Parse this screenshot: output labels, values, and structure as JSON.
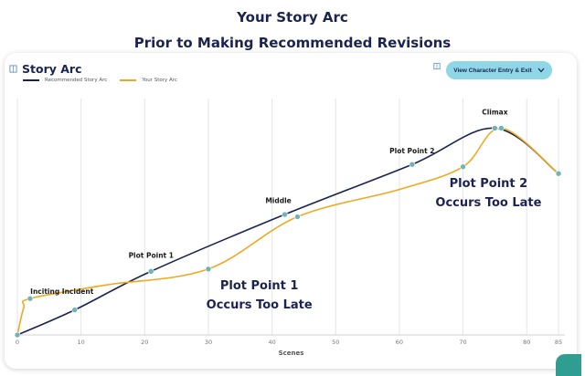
{
  "page": {
    "title_line1": "Your Story Arc",
    "title_line2": "Prior to Making Recommended Revisions"
  },
  "card": {
    "title": "Story Arc",
    "button_label": "View Character Entry & Exit"
  },
  "colors": {
    "recommended": "#1b2350",
    "yours": "#f0a81e",
    "marker": "#6fb3b8",
    "grid": "#e5e5e5",
    "annotation": "#1b2350"
  },
  "chart_data": {
    "type": "line",
    "title": "Story Arc",
    "xlabel": "Scenes",
    "ylabel": "",
    "xlim": [
      0,
      86
    ],
    "xticks": [
      0,
      10,
      20,
      30,
      40,
      50,
      60,
      70,
      80,
      85
    ],
    "ylim": [
      0,
      100
    ],
    "grid": "vertical",
    "legend": "top-left",
    "series": [
      {
        "name": "Recommended Story Arc",
        "color": "#1b2350",
        "points": [
          [
            0,
            0
          ],
          [
            9,
            11
          ],
          [
            21,
            28
          ],
          [
            42,
            53
          ],
          [
            62,
            75
          ],
          [
            75,
            91
          ],
          [
            85,
            71
          ]
        ],
        "markers": [
          [
            9,
            11
          ],
          [
            21,
            28
          ],
          [
            42,
            53
          ],
          [
            62,
            75
          ],
          [
            75,
            91
          ],
          [
            85,
            71
          ]
        ]
      },
      {
        "name": "Your Story Arc",
        "color": "#f0a81e",
        "points": [
          [
            0,
            0
          ],
          [
            1,
            12
          ],
          [
            2,
            16
          ],
          [
            14,
            22
          ],
          [
            30,
            29
          ],
          [
            44,
            52
          ],
          [
            60,
            64
          ],
          [
            70,
            74
          ],
          [
            76,
            91
          ],
          [
            85,
            71
          ]
        ],
        "markers": [
          [
            0,
            0
          ],
          [
            2,
            16
          ],
          [
            30,
            29
          ],
          [
            44,
            52
          ],
          [
            70,
            74
          ],
          [
            76,
            91
          ],
          [
            85,
            71
          ]
        ]
      }
    ],
    "annotations": [
      {
        "text": "Inciting Incident",
        "x": 7,
        "y": 18
      },
      {
        "text": "Plot Point 1",
        "x": 21,
        "y": 34
      },
      {
        "text": "Middle",
        "x": 41,
        "y": 58
      },
      {
        "text": "Plot Point 2",
        "x": 62,
        "y": 80
      },
      {
        "text": "Climax",
        "x": 75,
        "y": 97
      }
    ],
    "callouts": [
      {
        "line1": "Plot Point 1",
        "line2": "Occurs Too Late",
        "x": 38,
        "y": 20
      },
      {
        "line1": "Plot Point 2",
        "line2": "Occurs Too Late",
        "x": 74,
        "y": 65
      }
    ]
  }
}
